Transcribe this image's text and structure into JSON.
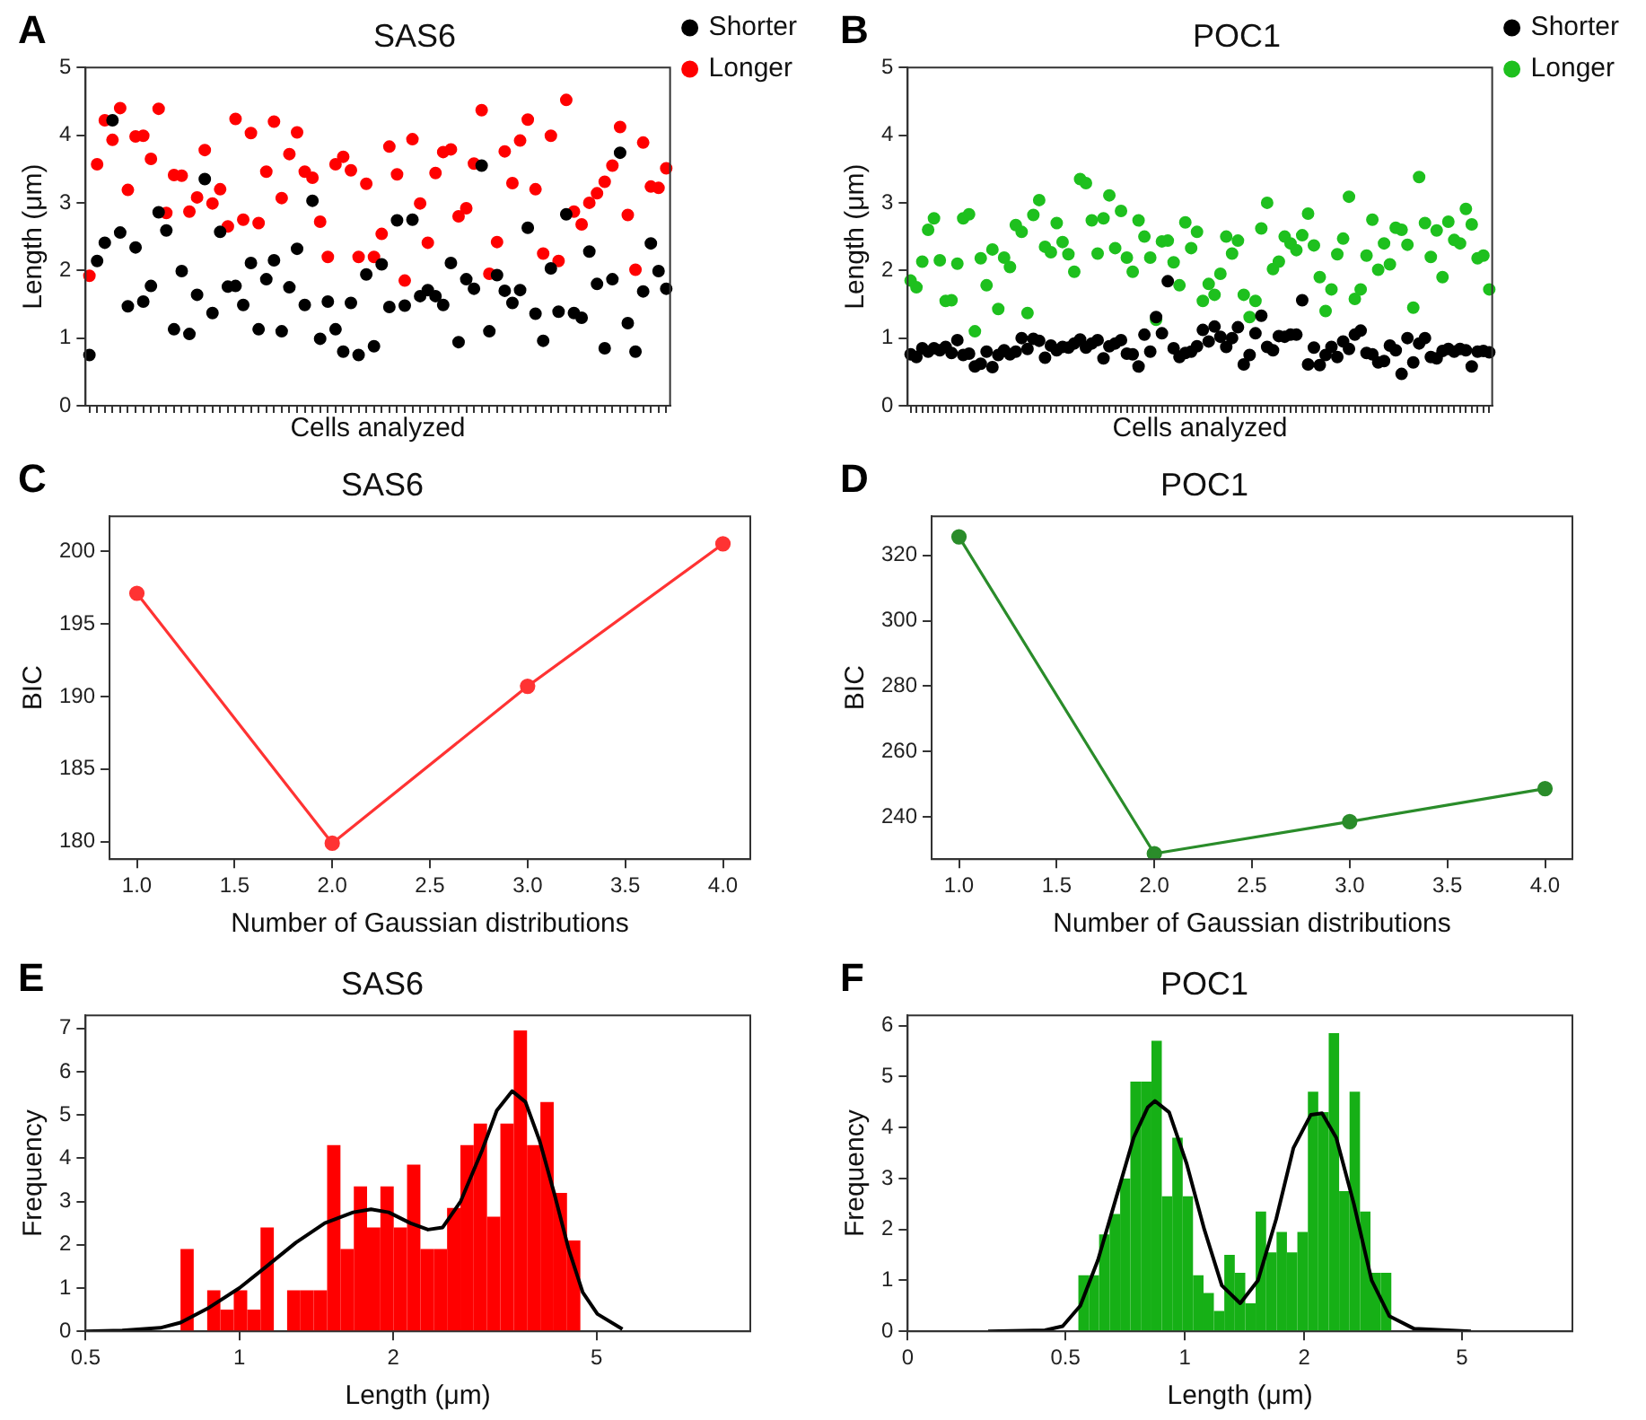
{
  "chart_data": [
    {
      "type": "scatter",
      "title": "SAS6",
      "xlabel": "Cells analyzed",
      "ylabel": "Length (μm)",
      "annotations": [
        "A"
      ],
      "marker": "circle",
      "legend": "right",
      "ylim": [
        0,
        5
      ],
      "yticks": [
        0,
        1,
        2,
        3,
        4,
        5
      ],
      "categories": [
        null,
        null,
        null,
        null,
        null,
        null,
        null,
        null,
        null,
        null,
        null,
        null,
        null,
        null,
        null,
        null,
        null,
        null,
        null,
        null,
        null,
        null,
        null,
        null,
        null,
        null,
        null,
        null,
        null,
        null,
        null,
        null,
        null,
        null,
        null,
        null,
        null,
        null,
        null,
        null,
        null,
        null,
        null,
        null,
        null,
        null,
        null,
        null,
        null,
        null,
        null,
        null,
        null,
        null,
        null,
        null,
        null,
        null,
        null,
        null,
        null,
        null,
        null,
        null,
        null,
        null,
        null,
        null,
        null,
        null,
        null,
        null,
        null,
        null,
        null,
        null
      ],
      "series": [
        {
          "name": "Shorter",
          "color": "#000000",
          "values": [
            0.75,
            2.14,
            2.41,
            4.22,
            2.56,
            1.47,
            2.34,
            1.54,
            1.77,
            2.86,
            2.59,
            1.13,
            1.99,
            1.06,
            1.64,
            3.35,
            1.37,
            2.57,
            1.76,
            1.77,
            1.49,
            2.11,
            1.13,
            1.87,
            2.15,
            1.1,
            1.75,
            2.32,
            1.49,
            3.03,
            0.99,
            1.54,
            1.13,
            0.8,
            1.52,
            0.75,
            1.94,
            0.88,
            2.09,
            1.46,
            2.74,
            1.48,
            2.75,
            1.62,
            1.71,
            1.62,
            1.49,
            2.11,
            0.94,
            1.87,
            1.73,
            3.55,
            1.1,
            1.93,
            1.7,
            1.52,
            1.71,
            2.63,
            1.36,
            0.96,
            2.03,
            1.39,
            2.83,
            1.37,
            1.3,
            2.28,
            1.8,
            0.85,
            1.87,
            3.74,
            1.22,
            0.8,
            1.69,
            2.4,
            1.99,
            1.73
          ]
        },
        {
          "name": "Longer",
          "color": "#ff0000",
          "values": [
            1.92,
            3.57,
            4.22,
            3.93,
            4.4,
            3.19,
            3.98,
            3.99,
            3.65,
            4.39,
            2.85,
            3.41,
            3.4,
            2.87,
            3.08,
            3.78,
            2.99,
            3.2,
            2.65,
            4.24,
            2.75,
            4.03,
            2.7,
            3.46,
            4.2,
            3.07,
            3.72,
            4.04,
            3.46,
            3.37,
            2.72,
            2.2,
            3.57,
            3.68,
            3.48,
            2.2,
            3.28,
            2.2,
            2.54,
            3.83,
            3.42,
            1.85,
            3.94,
            2.99,
            2.41,
            3.44,
            3.75,
            3.79,
            2.8,
            2.92,
            3.58,
            4.37,
            1.95,
            2.42,
            3.76,
            3.29,
            3.92,
            4.23,
            3.2,
            2.25,
            3.99,
            2.14,
            4.52,
            2.87,
            2.68,
            3.0,
            3.14,
            3.31,
            3.55,
            4.12,
            2.82,
            2.01,
            3.89,
            3.24,
            3.22,
            3.51
          ]
        }
      ]
    },
    {
      "type": "scatter",
      "title": "POC1",
      "xlabel": "Cells analyzed",
      "ylabel": "Length (μm)",
      "annotations": [
        "B"
      ],
      "marker": "circle",
      "legend": "right",
      "ylim": [
        0,
        5
      ],
      "yticks": [
        0,
        1,
        2,
        3,
        4,
        5
      ],
      "categories": [
        null,
        null,
        null,
        null,
        null,
        null,
        null,
        null,
        null,
        null,
        null,
        null,
        null,
        null,
        null,
        null,
        null,
        null,
        null,
        null,
        null,
        null,
        null,
        null,
        null,
        null,
        null,
        null,
        null,
        null,
        null,
        null,
        null,
        null,
        null,
        null,
        null,
        null,
        null,
        null,
        null,
        null,
        null,
        null,
        null,
        null,
        null,
        null,
        null,
        null,
        null,
        null,
        null,
        null,
        null,
        null,
        null,
        null,
        null,
        null,
        null,
        null,
        null,
        null,
        null,
        null,
        null,
        null,
        null,
        null,
        null,
        null,
        null,
        null,
        null,
        null,
        null,
        null,
        null,
        null,
        null,
        null,
        null,
        null,
        null,
        null,
        null,
        null,
        null,
        null,
        null,
        null,
        null,
        null,
        null,
        null,
        null,
        null,
        null,
        null
      ],
      "series": [
        {
          "name": "Shorter",
          "color": "#000000",
          "values": [
            0.76,
            0.72,
            0.85,
            0.8,
            0.85,
            0.82,
            0.87,
            0.78,
            0.97,
            0.75,
            0.77,
            0.58,
            0.62,
            0.8,
            0.57,
            0.75,
            0.82,
            0.76,
            0.8,
            1.0,
            0.84,
            0.99,
            0.96,
            0.71,
            0.89,
            0.82,
            0.87,
            0.86,
            0.92,
            0.98,
            0.86,
            0.92,
            0.97,
            0.7,
            0.88,
            0.92,
            0.97,
            0.77,
            0.76,
            0.58,
            1.05,
            0.8,
            1.31,
            1.07,
            1.84,
            0.85,
            0.72,
            0.78,
            0.8,
            0.88,
            1.12,
            0.95,
            1.17,
            1.02,
            0.87,
            1.0,
            1.16,
            0.61,
            0.75,
            1.07,
            1.33,
            0.87,
            0.82,
            1.03,
            1.02,
            1.05,
            1.05,
            1.56,
            0.61,
            0.86,
            0.6,
            0.75,
            0.87,
            0.72,
            0.95,
            0.84,
            1.05,
            1.11,
            0.78,
            0.76,
            0.64,
            0.66,
            0.89,
            0.82,
            0.47,
            1.0,
            0.64,
            0.92,
            1.0,
            0.72,
            0.7,
            0.81,
            0.84,
            0.8,
            0.84,
            0.82,
            0.58,
            0.8,
            0.81,
            0.79
          ]
        },
        {
          "name": "Longer",
          "color": "#1ec01e",
          "values": [
            1.85,
            1.75,
            2.13,
            2.6,
            2.77,
            2.15,
            1.55,
            1.56,
            2.1,
            2.77,
            2.83,
            1.1,
            2.18,
            1.78,
            2.31,
            1.43,
            2.19,
            2.05,
            2.67,
            2.57,
            1.37,
            2.82,
            3.04,
            2.35,
            2.27,
            2.7,
            2.42,
            2.24,
            1.98,
            3.35,
            3.29,
            2.74,
            2.25,
            2.77,
            3.11,
            2.33,
            2.88,
            2.19,
            1.98,
            2.74,
            2.5,
            2.19,
            1.27,
            2.43,
            2.44,
            2.12,
            1.78,
            2.71,
            2.33,
            2.57,
            1.55,
            1.8,
            1.64,
            1.95,
            2.5,
            2.25,
            2.44,
            1.64,
            1.31,
            1.55,
            2.62,
            3.0,
            2.02,
            2.13,
            2.5,
            2.4,
            2.3,
            2.52,
            2.84,
            2.37,
            1.9,
            1.4,
            1.72,
            2.24,
            2.47,
            3.09,
            1.58,
            1.72,
            2.22,
            2.75,
            2.01,
            2.4,
            2.09,
            2.63,
            2.6,
            2.38,
            1.45,
            3.38,
            2.7,
            2.2,
            2.59,
            1.9,
            2.72,
            2.45,
            2.4,
            2.91,
            2.68,
            2.18,
            2.22,
            1.72
          ]
        }
      ]
    },
    {
      "type": "line",
      "title": "SAS6",
      "xlabel": "Number of Gaussian distributions",
      "ylabel": "BIC",
      "annotations": [
        "C"
      ],
      "marker": "circle",
      "x": [
        1,
        2,
        3,
        4
      ],
      "xlim": [
        0.86,
        4.14
      ],
      "xticks": [
        {
          "value": 1,
          "label": "1.0"
        },
        1.5,
        {
          "value": 2,
          "label": "2.0"
        },
        2.5,
        {
          "value": 3,
          "label": "3.0"
        },
        3.5,
        {
          "value": 4,
          "label": "4.0"
        }
      ],
      "ylim": [
        178.8,
        202.4
      ],
      "yticks": [
        180,
        185,
        190,
        195,
        200
      ],
      "series": [
        {
          "color": "#ff3333",
          "values": [
            197.1,
            179.9,
            190.7,
            200.5
          ]
        }
      ]
    },
    {
      "type": "line",
      "title": "POC1",
      "xlabel": "Number of Gaussian distributions",
      "ylabel": "BIC",
      "annotations": [
        "D"
      ],
      "marker": "circle",
      "x": [
        1,
        2,
        3,
        4
      ],
      "xlim": [
        0.86,
        4.14
      ],
      "xticks": [
        {
          "value": 1,
          "label": "1.0"
        },
        1.5,
        {
          "value": 2,
          "label": "2.0"
        },
        2.5,
        {
          "value": 3,
          "label": "3.0"
        },
        3.5,
        {
          "value": 4,
          "label": "4.0"
        }
      ],
      "ylim": [
        227,
        332
      ],
      "yticks": [
        240,
        260,
        280,
        300,
        320
      ],
      "series": [
        {
          "color": "#2a8c2a",
          "values": [
            325.7,
            228.7,
            238.5,
            248.6
          ]
        }
      ]
    },
    {
      "type": "histogram",
      "title": "SAS6",
      "xlabel": "Length (μm)",
      "ylabel": "Frequency",
      "annotations": [
        "E"
      ],
      "log": "x",
      "xlim": [
        0.5,
        10
      ],
      "xticks": [
        0.5,
        1,
        2,
        5
      ],
      "ylim": [
        0,
        7.3
      ],
      "yticks": [
        0,
        1,
        2,
        3,
        4,
        5,
        6,
        7
      ],
      "series": [
        {
          "type": "histogram",
          "color": "#ff0000",
          "bins": [
            0.767,
            0.814,
            0.865,
            0.918,
            0.975,
            1.036,
            1.1,
            1.168,
            1.24,
            1.317,
            1.398,
            1.485,
            1.577,
            1.675,
            1.778,
            1.888,
            2.005,
            2.129,
            2.261,
            2.401,
            2.55,
            2.708,
            2.875,
            3.053,
            3.242,
            3.443,
            3.656,
            3.883,
            4.123,
            4.378,
            4.649
          ],
          "values": [
            1.9,
            0,
            0.95,
            0.5,
            0.95,
            0.5,
            2.4,
            0,
            0.95,
            0.95,
            0.95,
            4.3,
            1.9,
            3.35,
            2.4,
            3.35,
            2.4,
            3.85,
            1.9,
            1.9,
            2.85,
            4.3,
            4.8,
            2.65,
            4.8,
            6.95,
            4.3,
            5.3,
            3.2,
            2.1
          ]
        },
        {
          "type": "line",
          "color": "#000000",
          "x": [
            0.5,
            0.59,
            0.7,
            0.767,
            0.873,
            1.0,
            1.13,
            1.29,
            1.47,
            1.67,
            1.81,
            1.96,
            2.16,
            2.34,
            2.5,
            2.71,
            2.99,
            3.19,
            3.42,
            3.63,
            3.87,
            4.13,
            4.41,
            4.7,
            5.02,
            5.62
          ],
          "values": [
            0,
            0.02,
            0.08,
            0.2,
            0.55,
            1.0,
            1.5,
            2.05,
            2.5,
            2.75,
            2.82,
            2.75,
            2.5,
            2.35,
            2.4,
            3.0,
            4.2,
            5.1,
            5.55,
            5.3,
            4.4,
            3.2,
            1.9,
            0.9,
            0.4,
            0.05
          ]
        }
      ]
    },
    {
      "type": "histogram",
      "title": "POC1",
      "xlabel": "Length (μm)",
      "ylabel": "Frequency",
      "annotations": [
        "F"
      ],
      "log": "x",
      "xlim": [
        0.2,
        9.5
      ],
      "xticks": [
        {
          "value": 0.2,
          "label": "0"
        },
        0.5,
        1,
        2,
        5
      ],
      "ylim": [
        0,
        6.2
      ],
      "yticks": [
        0,
        1,
        2,
        3,
        4,
        5,
        6
      ],
      "series": [
        {
          "type": "histogram",
          "color": "#16b016",
          "bins": [
            0.539,
            0.573,
            0.608,
            0.646,
            0.687,
            0.729,
            0.775,
            0.824,
            0.875,
            0.93,
            0.988,
            1.049,
            1.115,
            1.184,
            1.258,
            1.337,
            1.421,
            1.509,
            1.604,
            1.704,
            1.81,
            1.923,
            2.044,
            2.171,
            2.307,
            2.451,
            2.604,
            2.767,
            2.94,
            3.124,
            3.319
          ],
          "values": [
            1.1,
            1.1,
            1.9,
            2.3,
            3.0,
            4.9,
            4.9,
            5.7,
            2.65,
            3.8,
            2.65,
            1.1,
            0.75,
            0.4,
            1.5,
            1.15,
            0.55,
            2.35,
            1.55,
            1.95,
            1.55,
            1.95,
            4.7,
            4.3,
            5.85,
            2.75,
            4.7,
            2.35,
            1.15,
            1.15
          ]
        },
        {
          "type": "line",
          "color": "#000000",
          "x": [
            0.319,
            0.444,
            0.492,
            0.545,
            0.604,
            0.67,
            0.743,
            0.807,
            0.841,
            0.913,
            1.01,
            1.12,
            1.24,
            1.38,
            1.53,
            1.7,
            1.88,
            2.08,
            2.22,
            2.41,
            2.67,
            2.96,
            3.28,
            3.79,
            5.27
          ],
          "values": [
            0,
            0.02,
            0.1,
            0.5,
            1.4,
            2.6,
            3.8,
            4.4,
            4.52,
            4.3,
            3.3,
            2.0,
            0.9,
            0.55,
            1.0,
            2.2,
            3.6,
            4.25,
            4.28,
            3.8,
            2.5,
            1.0,
            0.3,
            0.05,
            0
          ]
        }
      ]
    }
  ]
}
